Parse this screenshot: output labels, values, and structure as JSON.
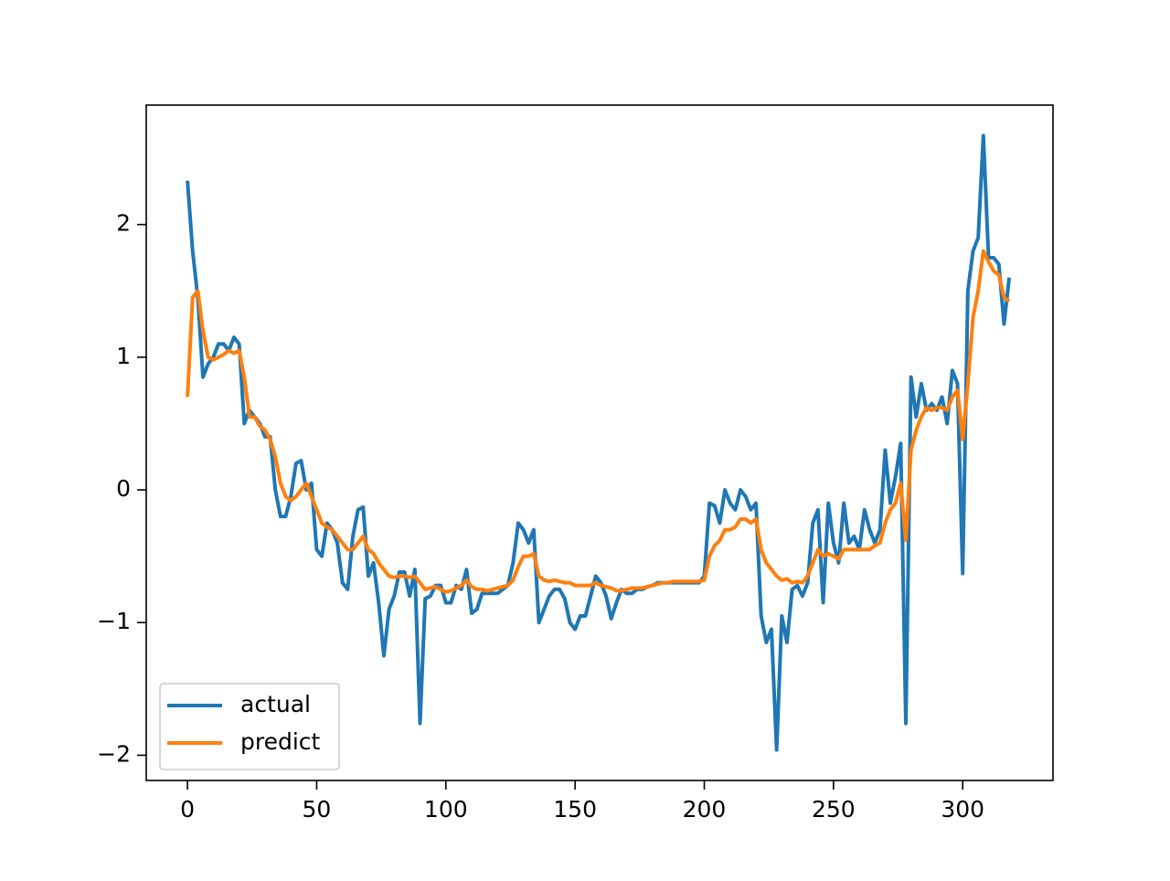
{
  "chart_data": {
    "type": "line",
    "x": [
      0,
      2,
      4,
      6,
      8,
      10,
      12,
      14,
      16,
      18,
      20,
      22,
      24,
      26,
      28,
      30,
      32,
      34,
      36,
      38,
      40,
      42,
      44,
      46,
      48,
      50,
      52,
      54,
      56,
      58,
      60,
      62,
      64,
      66,
      68,
      70,
      72,
      74,
      76,
      78,
      80,
      82,
      84,
      86,
      88,
      90,
      92,
      94,
      96,
      98,
      100,
      102,
      104,
      106,
      108,
      110,
      112,
      114,
      116,
      118,
      120,
      122,
      124,
      126,
      128,
      130,
      132,
      134,
      136,
      138,
      140,
      142,
      144,
      146,
      148,
      150,
      152,
      154,
      156,
      158,
      160,
      162,
      164,
      166,
      168,
      170,
      172,
      174,
      176,
      178,
      180,
      182,
      184,
      186,
      188,
      190,
      192,
      194,
      196,
      198,
      200,
      202,
      204,
      206,
      208,
      210,
      212,
      214,
      216,
      218,
      220,
      222,
      224,
      226,
      228,
      230,
      232,
      234,
      236,
      238,
      240,
      242,
      244,
      246,
      248,
      250,
      252,
      254,
      256,
      258,
      260,
      262,
      264,
      266,
      268,
      270,
      272,
      274,
      276,
      278,
      280,
      282,
      284,
      286,
      288,
      290,
      292,
      294,
      296,
      298,
      300,
      302,
      304,
      306,
      308,
      310,
      312,
      314,
      316,
      318
    ],
    "series": [
      {
        "name": "actual",
        "color": "#1f77b4",
        "values": [
          2.33,
          1.8,
          1.45,
          0.85,
          0.95,
          1.0,
          1.1,
          1.1,
          1.05,
          1.15,
          1.1,
          0.5,
          0.6,
          0.55,
          0.5,
          0.4,
          0.4,
          0.0,
          -0.2,
          -0.2,
          -0.05,
          0.2,
          0.22,
          0.0,
          0.05,
          -0.45,
          -0.5,
          -0.25,
          -0.3,
          -0.4,
          -0.7,
          -0.75,
          -0.35,
          -0.15,
          -0.13,
          -0.65,
          -0.55,
          -0.85,
          -1.25,
          -0.9,
          -0.8,
          -0.62,
          -0.62,
          -0.8,
          -0.6,
          -1.76,
          -0.82,
          -0.8,
          -0.72,
          -0.72,
          -0.85,
          -0.85,
          -0.72,
          -0.75,
          -0.6,
          -0.93,
          -0.9,
          -0.78,
          -0.78,
          -0.78,
          -0.78,
          -0.75,
          -0.72,
          -0.55,
          -0.25,
          -0.3,
          -0.4,
          -0.3,
          -1.0,
          -0.9,
          -0.8,
          -0.75,
          -0.75,
          -0.82,
          -1.0,
          -1.05,
          -0.95,
          -0.95,
          -0.8,
          -0.65,
          -0.7,
          -0.8,
          -0.97,
          -0.85,
          -0.75,
          -0.78,
          -0.78,
          -0.75,
          -0.75,
          -0.73,
          -0.72,
          -0.7,
          -0.7,
          -0.7,
          -0.7,
          -0.7,
          -0.7,
          -0.7,
          -0.7,
          -0.7,
          -0.65,
          -0.1,
          -0.12,
          -0.25,
          0.0,
          -0.1,
          -0.15,
          0.0,
          -0.05,
          -0.15,
          -0.1,
          -0.95,
          -1.15,
          -1.05,
          -1.96,
          -0.95,
          -1.15,
          -0.75,
          -0.72,
          -0.8,
          -0.7,
          -0.25,
          -0.15,
          -0.85,
          -0.1,
          -0.4,
          -0.55,
          -0.1,
          -0.4,
          -0.35,
          -0.45,
          -0.15,
          -0.3,
          -0.4,
          -0.3,
          0.3,
          -0.1,
          0.1,
          0.35,
          -1.76,
          0.85,
          0.55,
          0.8,
          0.6,
          0.65,
          0.6,
          0.7,
          0.5,
          0.9,
          0.8,
          -0.63,
          1.5,
          1.8,
          1.9,
          2.67,
          1.75,
          1.75,
          1.7,
          1.25,
          1.6
        ]
      },
      {
        "name": "predict",
        "color": "#ff7f0e",
        "values": [
          0.7,
          1.45,
          1.5,
          1.2,
          1.0,
          0.98,
          1.0,
          1.02,
          1.05,
          1.03,
          1.05,
          0.85,
          0.55,
          0.55,
          0.48,
          0.45,
          0.38,
          0.25,
          0.05,
          -0.05,
          -0.08,
          -0.05,
          0.0,
          0.05,
          -0.05,
          -0.15,
          -0.25,
          -0.28,
          -0.3,
          -0.35,
          -0.4,
          -0.45,
          -0.45,
          -0.4,
          -0.35,
          -0.45,
          -0.48,
          -0.55,
          -0.6,
          -0.65,
          -0.66,
          -0.65,
          -0.65,
          -0.66,
          -0.65,
          -0.7,
          -0.75,
          -0.74,
          -0.73,
          -0.75,
          -0.77,
          -0.76,
          -0.74,
          -0.72,
          -0.68,
          -0.73,
          -0.75,
          -0.75,
          -0.76,
          -0.75,
          -0.74,
          -0.73,
          -0.72,
          -0.68,
          -0.58,
          -0.5,
          -0.5,
          -0.48,
          -0.65,
          -0.68,
          -0.69,
          -0.68,
          -0.69,
          -0.7,
          -0.7,
          -0.72,
          -0.72,
          -0.72,
          -0.72,
          -0.7,
          -0.72,
          -0.73,
          -0.74,
          -0.76,
          -0.76,
          -0.75,
          -0.74,
          -0.74,
          -0.74,
          -0.73,
          -0.72,
          -0.71,
          -0.7,
          -0.7,
          -0.69,
          -0.69,
          -0.69,
          -0.69,
          -0.69,
          -0.69,
          -0.68,
          -0.5,
          -0.42,
          -0.38,
          -0.3,
          -0.3,
          -0.28,
          -0.22,
          -0.22,
          -0.25,
          -0.22,
          -0.45,
          -0.55,
          -0.6,
          -0.65,
          -0.68,
          -0.67,
          -0.7,
          -0.69,
          -0.7,
          -0.65,
          -0.55,
          -0.45,
          -0.5,
          -0.48,
          -0.5,
          -0.52,
          -0.45,
          -0.45,
          -0.45,
          -0.45,
          -0.45,
          -0.45,
          -0.42,
          -0.4,
          -0.25,
          -0.15,
          -0.1,
          0.05,
          -0.38,
          0.3,
          0.45,
          0.55,
          0.62,
          0.6,
          0.62,
          0.62,
          0.6,
          0.7,
          0.75,
          0.38,
          0.8,
          1.3,
          1.5,
          1.8,
          1.72,
          1.65,
          1.62,
          1.45,
          1.42
        ]
      }
    ],
    "xlim": [
      -15.95,
      334.95
    ],
    "ylim": [
      -2.19,
      2.9
    ],
    "xticks": [
      0,
      50,
      100,
      150,
      200,
      250,
      300
    ],
    "yticks": [
      {
        "value": -2,
        "label": "−2"
      },
      {
        "value": -1,
        "label": "−1"
      },
      0,
      1,
      2
    ],
    "legend": "lower left"
  }
}
